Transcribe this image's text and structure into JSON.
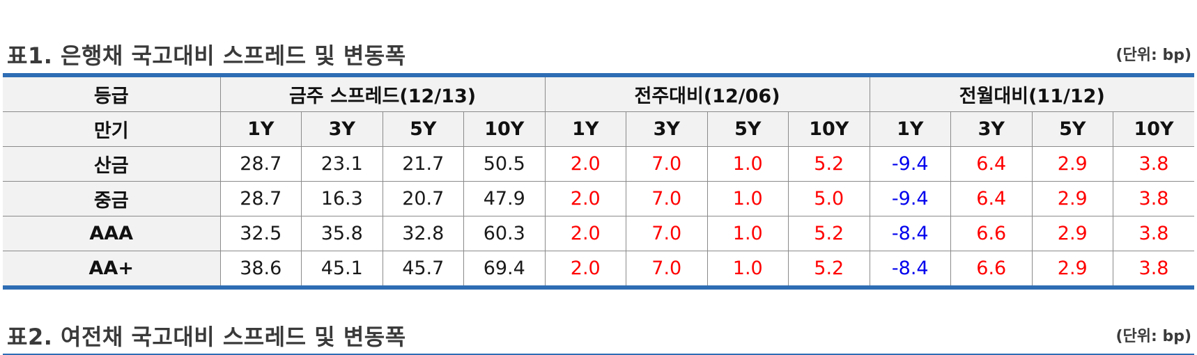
{
  "table1": {
    "title": "표1. 은행채 국고대비 스프레드 및 변동폭",
    "unit": "(단위: bp)",
    "header": {
      "grade_label": "등급",
      "maturity_label": "만기",
      "groups": [
        "금주 스프레드(12/13)",
        "전주대비(12/06)",
        "전월대비(11/12)"
      ],
      "maturities": [
        "1Y",
        "3Y",
        "5Y",
        "10Y",
        "1Y",
        "3Y",
        "5Y",
        "10Y",
        "1Y",
        "3Y",
        "5Y",
        "10Y"
      ]
    },
    "rows": [
      {
        "grade": "산금",
        "values": [
          "28.7",
          "23.1",
          "21.7",
          "50.5",
          "2.0",
          "7.0",
          "1.0",
          "5.2",
          "-9.4",
          "6.4",
          "2.9",
          "3.8"
        ]
      },
      {
        "grade": "중금",
        "values": [
          "28.7",
          "16.3",
          "20.7",
          "47.9",
          "2.0",
          "7.0",
          "1.0",
          "5.0",
          "-9.4",
          "6.4",
          "2.9",
          "3.8"
        ]
      },
      {
        "grade": "AAA",
        "values": [
          "32.5",
          "35.8",
          "32.8",
          "60.3",
          "2.0",
          "7.0",
          "1.0",
          "5.2",
          "-8.4",
          "6.6",
          "2.9",
          "3.8"
        ]
      },
      {
        "grade": "AA+",
        "values": [
          "38.6",
          "45.1",
          "45.7",
          "69.4",
          "2.0",
          "7.0",
          "1.0",
          "5.2",
          "-8.4",
          "6.6",
          "2.9",
          "3.8"
        ]
      }
    ]
  },
  "table2": {
    "title": "표2. 여전채 국고대비 스프레드 및 변동폭",
    "unit": "(단위: bp)"
  },
  "colors": {
    "rule": "#2e6db4",
    "increase": "#ff0000",
    "decrease": "#0000ee",
    "header_bg": "#f2f2f2"
  }
}
